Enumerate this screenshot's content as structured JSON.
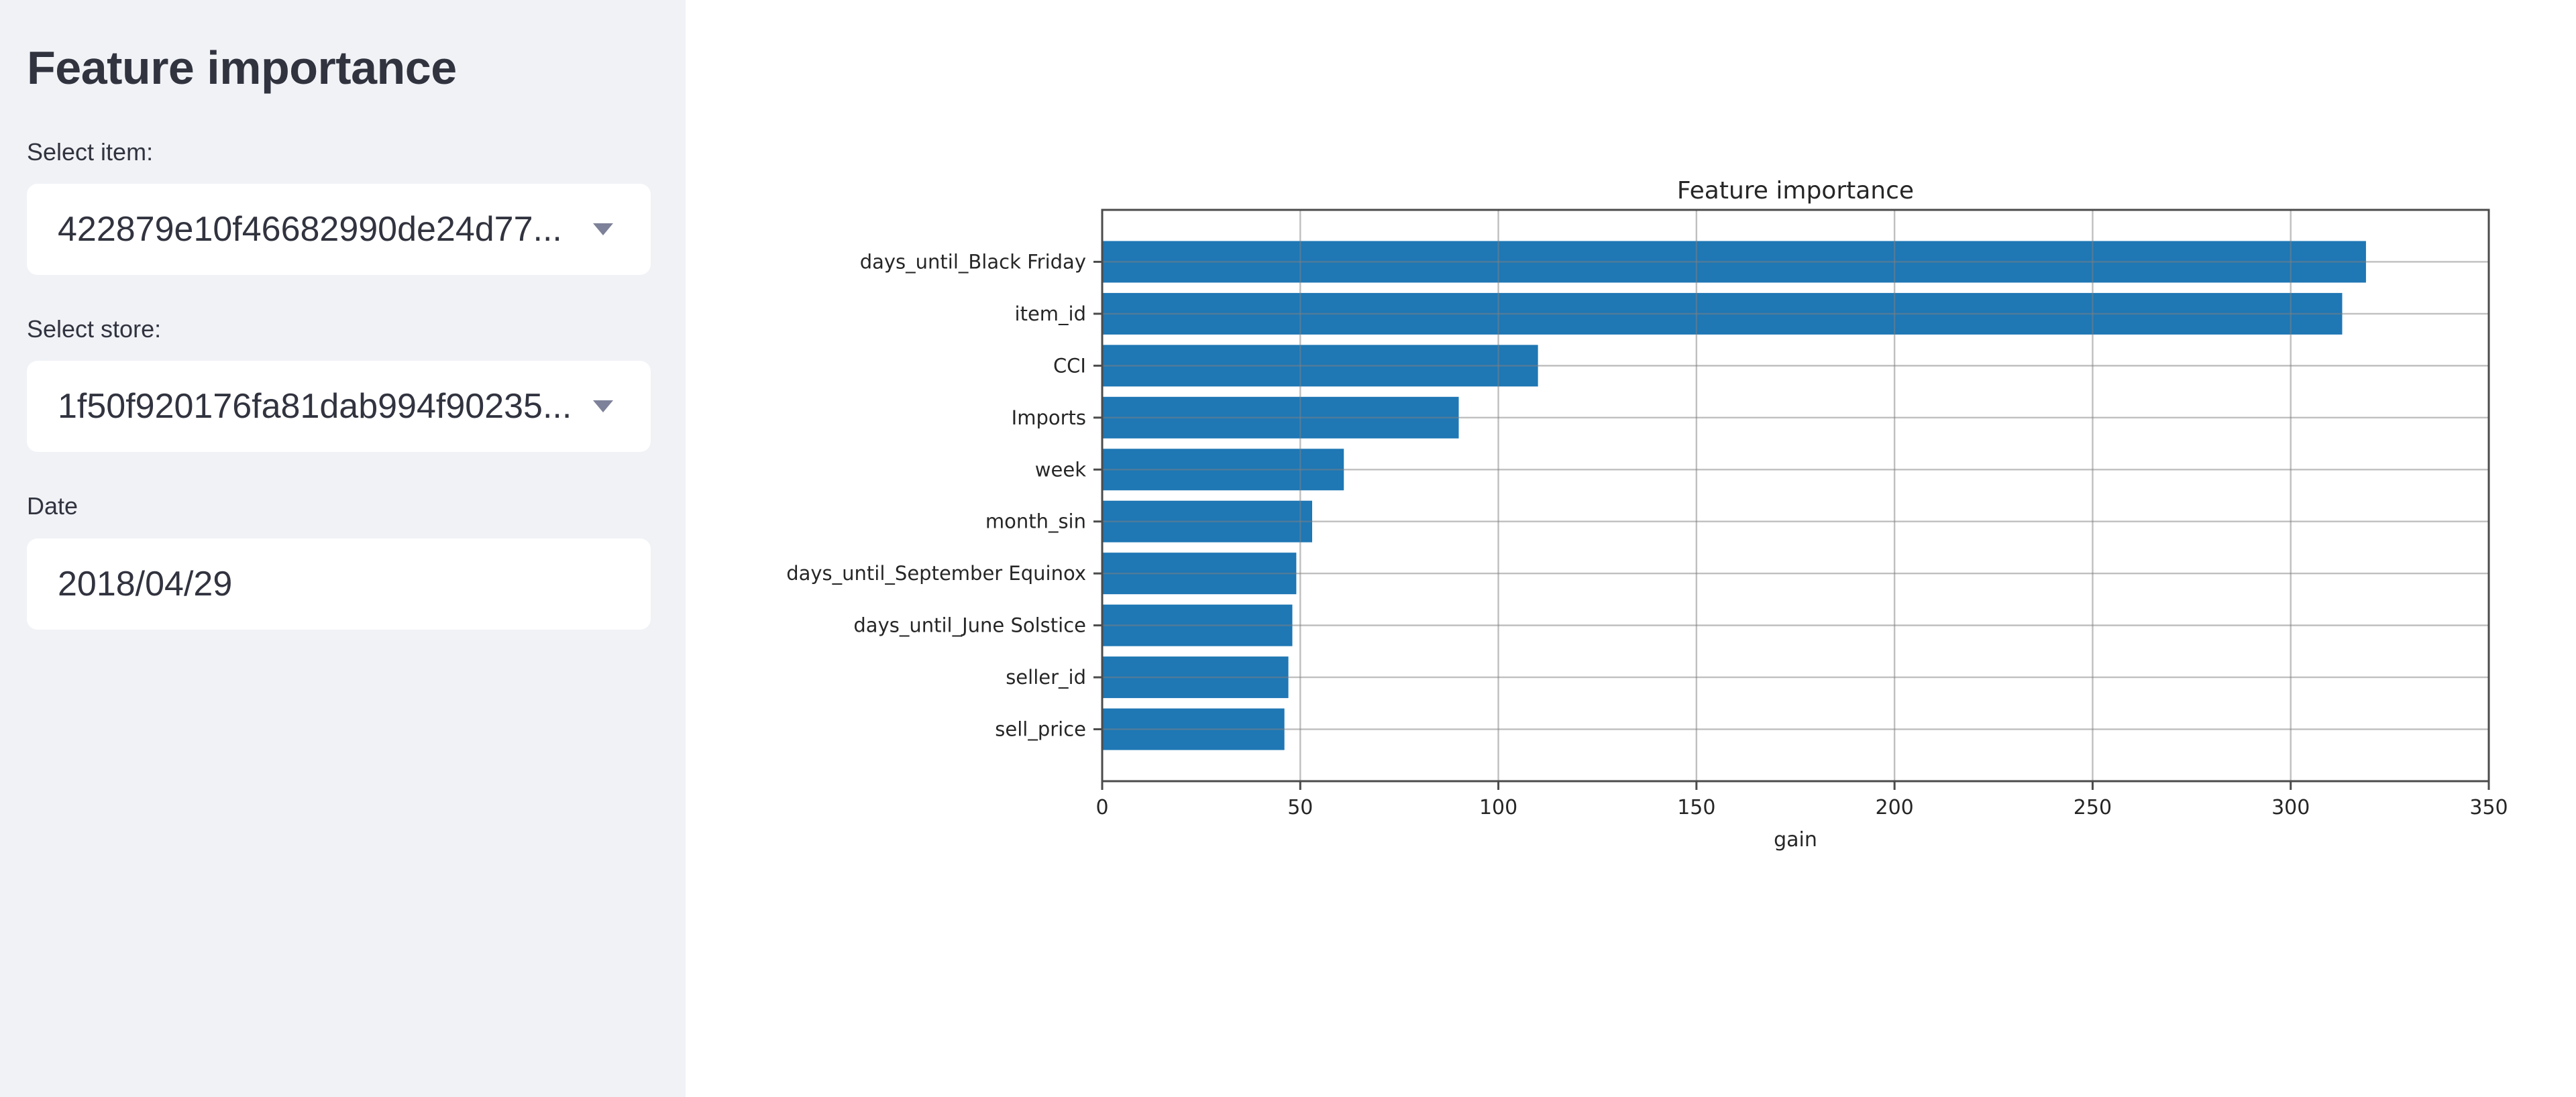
{
  "sidebar": {
    "title": "Feature importance",
    "item_select": {
      "label": "Select item:",
      "value": "422879e10f46682990de24d77..."
    },
    "store_select": {
      "label": "Select store:",
      "value": "1f50f920176fa81dab994f90235..."
    },
    "date_input": {
      "label": "Date",
      "value": "2018/04/29"
    }
  },
  "colors": {
    "sidebar_bg": "#f0f2f6",
    "widget_bg": "#ffffff",
    "text": "#31333f",
    "caret": "#7d8199",
    "chart_text": "#262626",
    "bar": "#1f77b4",
    "grid": "#808080",
    "spine": "#4b4b4b"
  },
  "chart_data": {
    "type": "bar",
    "orientation": "horizontal",
    "title": "Feature importance",
    "xlabel": "gain",
    "ylabel": "",
    "categories": [
      "days_until_Black Friday",
      "item_id",
      "CCI",
      "Imports",
      "week",
      "month_sin",
      "days_until_September Equinox",
      "days_until_June Solstice",
      "seller_id",
      "sell_price"
    ],
    "values": [
      319,
      313,
      110,
      90,
      61,
      53,
      49,
      48,
      47,
      46
    ],
    "xlim": [
      0,
      350
    ],
    "xticks": [
      0,
      50,
      100,
      150,
      200,
      250,
      300,
      350
    ],
    "grid": true,
    "legend": false,
    "bar_color": "#1f77b4"
  }
}
